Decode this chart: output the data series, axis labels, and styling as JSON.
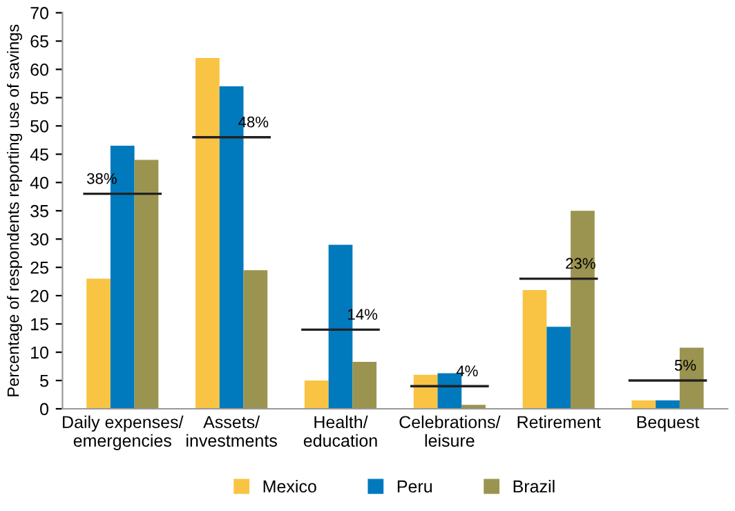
{
  "chart_data": {
    "type": "bar",
    "ylabel": "Percentage of respondents reporting use of savings",
    "categories": [
      "Daily expenses/\nemergencies",
      "Assets/\ninvestments",
      "Health/\neducation",
      "Celebrations/\nleisure",
      "Retirement",
      "Bequest"
    ],
    "series": [
      {
        "name": "Mexico",
        "color": "#f9c443",
        "values": [
          23,
          62,
          5,
          6,
          21,
          1.5
        ]
      },
      {
        "name": "Peru",
        "color": "#0079bd",
        "values": [
          46.5,
          57,
          29,
          6.3,
          14.5,
          1.5
        ]
      },
      {
        "name": "Brazil",
        "color": "#9b9450",
        "values": [
          44,
          24.5,
          8.3,
          0.7,
          35,
          10.8
        ]
      }
    ],
    "ref_lines": [
      {
        "axis": "y",
        "value": 38,
        "label": "38%"
      },
      {
        "axis": "y",
        "value": 48,
        "label": "48%"
      },
      {
        "axis": "y",
        "value": 14,
        "label": "14%"
      },
      {
        "axis": "y",
        "value": 4,
        "label": "4%"
      },
      {
        "axis": "y",
        "value": 23,
        "label": "23%"
      },
      {
        "axis": "y",
        "value": 5,
        "label": "5%"
      }
    ],
    "ylim": [
      0,
      70
    ],
    "yticks": [
      0,
      5,
      10,
      15,
      20,
      25,
      30,
      35,
      40,
      45,
      50,
      55,
      60,
      65,
      70
    ],
    "grid": false,
    "legend": "bottom"
  }
}
